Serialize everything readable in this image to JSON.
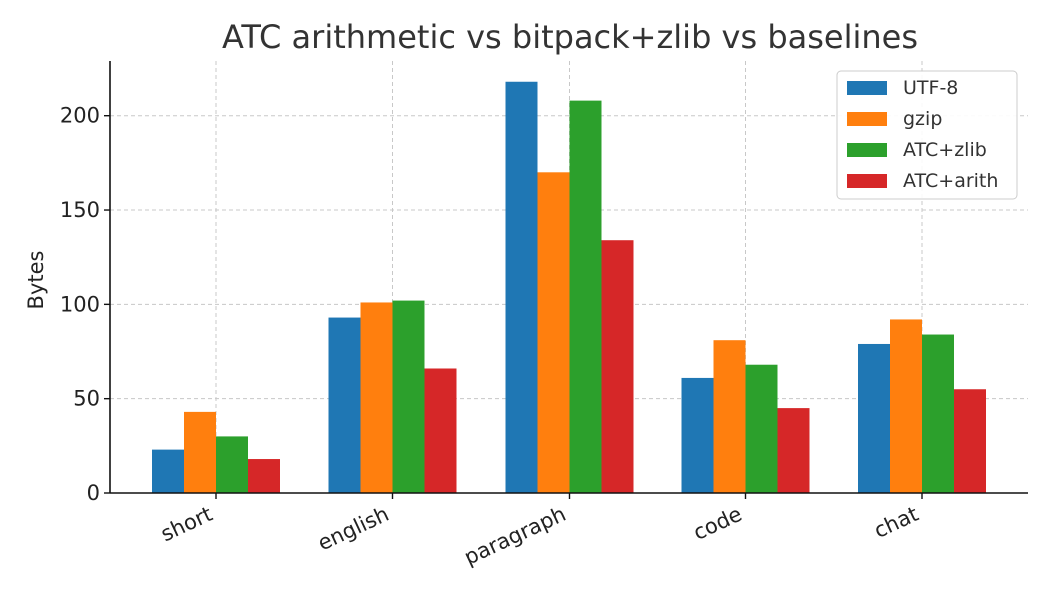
{
  "chart_data": {
    "type": "bar",
    "title": "ATC arithmetic vs bitpack+zlib vs baselines",
    "xlabel": "",
    "ylabel": "Bytes",
    "categories": [
      "short",
      "english",
      "paragraph",
      "code",
      "chat"
    ],
    "ylim": [
      0,
      229
    ],
    "yticks": [
      0,
      50,
      100,
      150,
      200
    ],
    "grid": true,
    "legend_position": "top-right",
    "series": [
      {
        "name": "UTF-8",
        "color": "#1f77b4",
        "values": [
          23,
          93,
          218,
          61,
          79
        ]
      },
      {
        "name": "gzip",
        "color": "#ff7f0e",
        "values": [
          43,
          101,
          170,
          81,
          92
        ]
      },
      {
        "name": "ATC+zlib",
        "color": "#2ca02c",
        "values": [
          30,
          102,
          208,
          68,
          84
        ]
      },
      {
        "name": "ATC+arith",
        "color": "#d62728",
        "values": [
          18,
          66,
          134,
          45,
          55
        ]
      }
    ]
  }
}
